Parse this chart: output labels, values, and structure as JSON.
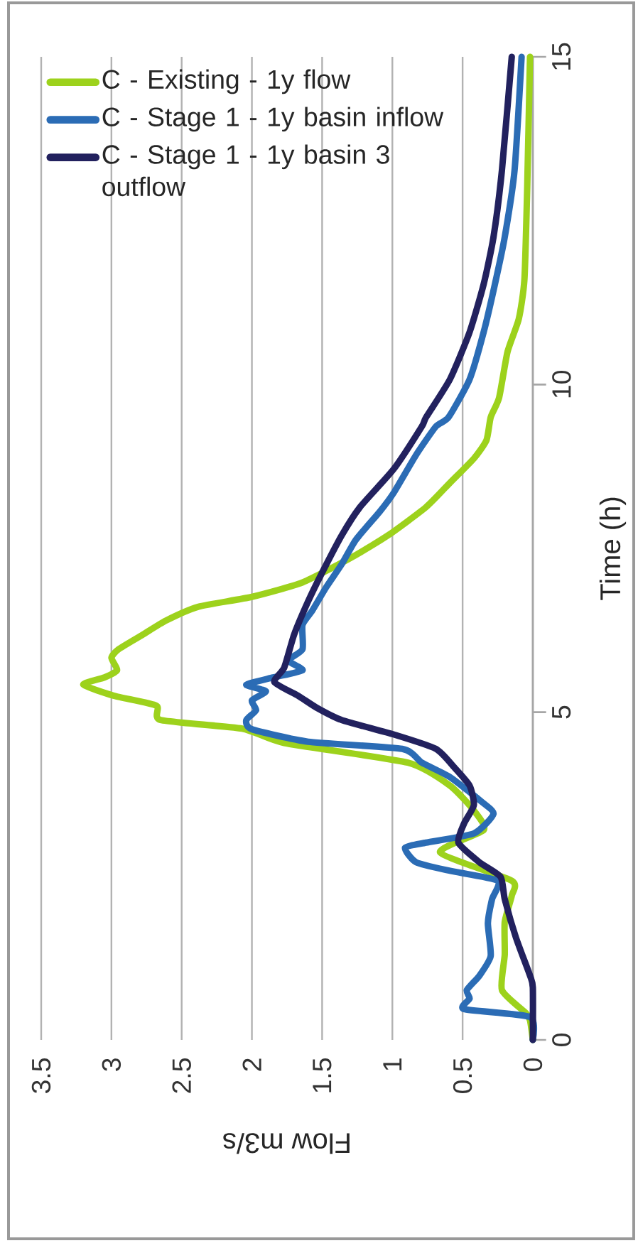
{
  "chart_data": {
    "type": "line",
    "xlabel": "Flow m3/s",
    "ylabel": "Time (h)",
    "xlim": [
      3.5,
      0
    ],
    "xticks": [
      0,
      0.5,
      1,
      1.5,
      2,
      2.5,
      3,
      3.5
    ],
    "ylim": [
      0,
      15
    ],
    "yticks": [
      0,
      5,
      10,
      15
    ],
    "orientation": "horizontal",
    "grid": "x",
    "legend": "top left",
    "line_style": "solid",
    "marker": "none",
    "series": [
      {
        "name": "C - Existing - 1y flow",
        "color": "#9dd21c",
        "x": [
          0,
          0.3,
          0.41,
          0.76,
          1.3,
          1.8,
          2.2,
          2.43,
          2.86,
          3.2,
          3.5,
          3.88,
          4.23,
          4.53,
          4.75,
          4.88,
          5.1,
          5.25,
          5.42,
          5.53,
          5.64,
          5.83,
          5.96,
          6.18,
          6.4,
          6.61,
          6.76,
          6.98,
          7.35,
          7.7,
          8.13,
          8.5,
          8.87,
          9.15,
          9.5,
          9.8,
          10.5,
          11.0,
          11.6,
          13.0,
          15.0
        ],
        "values": [
          0,
          0.02,
          0.05,
          0.22,
          0.2,
          0.2,
          0.15,
          0.15,
          0.66,
          0.35,
          0.42,
          0.59,
          0.89,
          1.77,
          2.07,
          2.65,
          2.68,
          2.98,
          3.2,
          3.05,
          2.96,
          3.0,
          2.95,
          2.78,
          2.61,
          2.38,
          2.0,
          1.64,
          1.3,
          1.03,
          0.76,
          0.59,
          0.42,
          0.33,
          0.3,
          0.24,
          0.18,
          0.1,
          0.06,
          0.04,
          0.02
        ]
      },
      {
        "name": "C - Stage 1 - 1y basin inflow",
        "color": "#2b6cb5",
        "x": [
          0,
          0.35,
          0.47,
          0.63,
          0.76,
          0.98,
          1.28,
          1.78,
          2.15,
          2.43,
          2.58,
          2.71,
          2.93,
          3.01,
          3.15,
          3.45,
          3.66,
          4.01,
          4.23,
          4.44,
          4.55,
          4.74,
          4.88,
          5.03,
          5.18,
          5.32,
          5.42,
          5.53,
          5.64,
          5.79,
          5.96,
          6.33,
          6.55,
          6.91,
          7.26,
          7.63,
          8.06,
          8.35,
          8.93,
          9.36,
          9.5,
          10.08,
          10.8,
          11.53,
          12.25,
          13.27,
          15.0
        ],
        "values": [
          0,
          0.02,
          0.49,
          0.45,
          0.47,
          0.38,
          0.3,
          0.32,
          0.29,
          0.25,
          0.59,
          0.83,
          0.91,
          0.76,
          0.42,
          0.28,
          0.38,
          0.59,
          0.79,
          0.93,
          1.6,
          2.0,
          2.04,
          1.97,
          2.0,
          1.9,
          2.04,
          1.85,
          1.64,
          1.74,
          1.64,
          1.64,
          1.57,
          1.47,
          1.36,
          1.26,
          1.09,
          0.99,
          0.83,
          0.69,
          0.6,
          0.45,
          0.35,
          0.27,
          0.2,
          0.13,
          0.08
        ]
      },
      {
        "name": "C - Stage 1 - 1y basin 3 outflow",
        "color": "#22215e",
        "x": [
          0,
          0.8,
          0.98,
          1.56,
          2.15,
          2.49,
          2.71,
          3.01,
          3.3,
          3.58,
          3.88,
          4.16,
          4.44,
          4.66,
          4.88,
          5.07,
          5.25,
          5.46,
          5.68,
          6.18,
          6.69,
          7.13,
          7.7,
          8.13,
          8.71,
          9.36,
          9.5,
          10.08,
          10.8,
          11.53,
          12.25,
          13.27,
          15.0
        ],
        "values": [
          0,
          0,
          0.02,
          0.12,
          0.2,
          0.23,
          0.38,
          0.53,
          0.49,
          0.42,
          0.45,
          0.56,
          0.69,
          0.99,
          1.36,
          1.54,
          1.67,
          1.84,
          1.77,
          1.7,
          1.6,
          1.5,
          1.36,
          1.23,
          0.99,
          0.79,
          0.76,
          0.59,
          0.45,
          0.35,
          0.28,
          0.22,
          0.15
        ]
      }
    ]
  }
}
